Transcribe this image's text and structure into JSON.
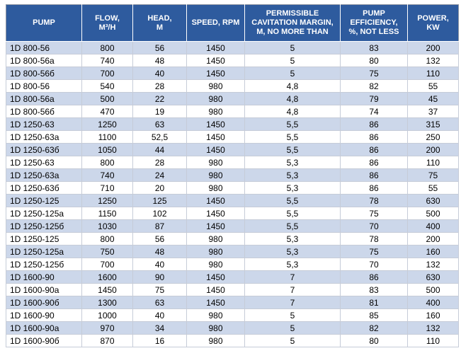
{
  "colors": {
    "header_bg": "#2e5b9e",
    "header_text": "#ffffff",
    "stripe_bg": "#ccd7ea",
    "row_bg": "#ffffff",
    "body_text": "#000000",
    "grid_line": "#c6ccd8",
    "outer_border": "#8f96a3"
  },
  "table": {
    "headers": [
      "PUMP",
      "FLOW,\nM³/H",
      "HEAD,\nM",
      "SPEED, RPM",
      "PERMISSIBLE\nCAVITATION MARGIN,\nM, NO MORE THAN",
      "PUMP\nEFFICIENCY,\n%, NOT LESS",
      "POWER,\nKW"
    ],
    "rows": [
      [
        "1D 800-56",
        "800",
        "56",
        "1450",
        "5",
        "83",
        "200"
      ],
      [
        "1D 800-56a",
        "740",
        "48",
        "1450",
        "5",
        "80",
        "132"
      ],
      [
        "1D 800-56б",
        "700",
        "40",
        "1450",
        "5",
        "75",
        "110"
      ],
      [
        "1D 800-56",
        "540",
        "28",
        "980",
        "4,8",
        "82",
        "55"
      ],
      [
        "1D 800-56a",
        "500",
        "22",
        "980",
        "4,8",
        "79",
        "45"
      ],
      [
        "1D 800-56б",
        "470",
        "19",
        "980",
        "4,8",
        "74",
        "37"
      ],
      [
        "1D 1250-63",
        "1250",
        "63",
        "1450",
        "5,5",
        "86",
        "315"
      ],
      [
        "1D 1250-63a",
        "1100",
        "52,5",
        "1450",
        "5,5",
        "86",
        "250"
      ],
      [
        "1D 1250-63б",
        "1050",
        "44",
        "1450",
        "5,5",
        "86",
        "200"
      ],
      [
        "1D 1250-63",
        "800",
        "28",
        "980",
        "5,3",
        "86",
        "110"
      ],
      [
        "1D 1250-63a",
        "740",
        "24",
        "980",
        "5,3",
        "86",
        "75"
      ],
      [
        "1D 1250-63б",
        "710",
        "20",
        "980",
        "5,3",
        "86",
        "55"
      ],
      [
        "1D 1250-125",
        "1250",
        "125",
        "1450",
        "5,5",
        "78",
        "630"
      ],
      [
        "1D 1250-125a",
        "1150",
        "102",
        "1450",
        "5,5",
        "75",
        "500"
      ],
      [
        "1D 1250-125б",
        "1030",
        "87",
        "1450",
        "5,5",
        "70",
        "400"
      ],
      [
        "1D 1250-125",
        "800",
        "56",
        "980",
        "5,3",
        "78",
        "200"
      ],
      [
        "1D 1250-125a",
        "750",
        "48",
        "980",
        "5,3",
        "75",
        "160"
      ],
      [
        "1D 1250-125б",
        "700",
        "40",
        "980",
        "5,3",
        "70",
        "132"
      ],
      [
        "1D 1600-90",
        "1600",
        "90",
        "1450",
        "7",
        "86",
        "630"
      ],
      [
        "1D 1600-90a",
        "1450",
        "75",
        "1450",
        "7",
        "83",
        "500"
      ],
      [
        "1D 1600-90б",
        "1300",
        "63",
        "1450",
        "7",
        "81",
        "400"
      ],
      [
        "1D 1600-90",
        "1000",
        "40",
        "980",
        "5",
        "85",
        "160"
      ],
      [
        "1D 1600-90a",
        "970",
        "34",
        "980",
        "5",
        "82",
        "132"
      ],
      [
        "1D 1600-90б",
        "870",
        "16",
        "980",
        "5",
        "80",
        "110"
      ]
    ]
  }
}
